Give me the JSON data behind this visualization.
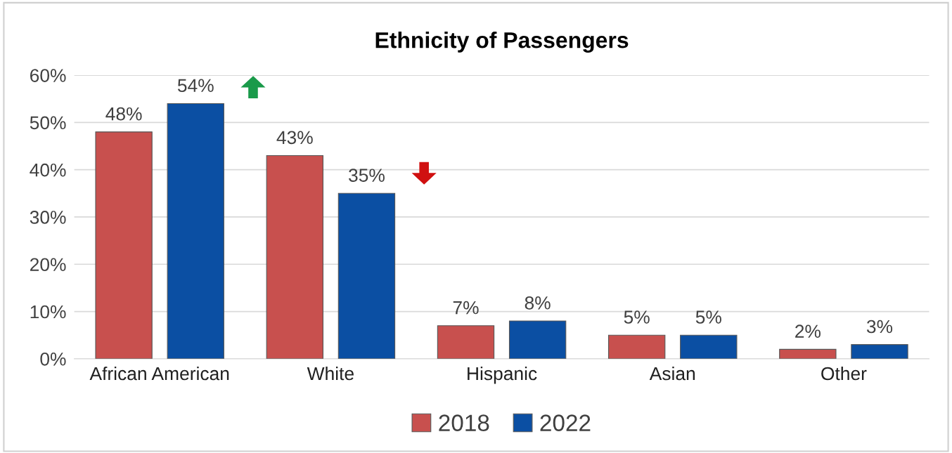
{
  "chart_data": {
    "type": "bar",
    "title": "Ethnicity of Passengers",
    "categories": [
      "African American",
      "White",
      "Hispanic",
      "Asian",
      "Other"
    ],
    "series": [
      {
        "name": "2018",
        "color": "#c8504e",
        "values": [
          48,
          43,
          7,
          5,
          2
        ],
        "value_labels": [
          "48%",
          "43%",
          "7%",
          "5%",
          "2%"
        ]
      },
      {
        "name": "2022",
        "color": "#0b4fa3",
        "values": [
          54,
          35,
          8,
          5,
          3
        ],
        "value_labels": [
          "54%",
          "35%",
          "8%",
          "5%",
          "3%"
        ]
      }
    ],
    "ylim": [
      0,
      60
    ],
    "yticks": [
      {
        "value": 0,
        "label": "0%"
      },
      {
        "value": 10,
        "label": "10%"
      },
      {
        "value": 20,
        "label": "20%"
      },
      {
        "value": 30,
        "label": "30%"
      },
      {
        "value": 40,
        "label": "40%"
      },
      {
        "value": 50,
        "label": "50%"
      },
      {
        "value": 60,
        "label": "60%"
      }
    ],
    "grid": "y",
    "legend": "bottom"
  }
}
